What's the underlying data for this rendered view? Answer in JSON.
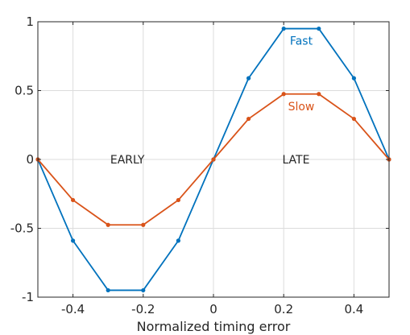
{
  "chart_data": {
    "type": "line",
    "title": "",
    "xlabel": "Normalized timing error",
    "ylabel": "",
    "xlim": [
      -0.5,
      0.5
    ],
    "ylim": [
      -1,
      1
    ],
    "grid": true,
    "x_ticks": [
      -0.4,
      -0.2,
      0,
      0.2,
      0.4
    ],
    "x_tick_labels": [
      "-0.4",
      "-0.2",
      "0",
      "0.2",
      "0.4"
    ],
    "y_ticks": [
      -1,
      -0.5,
      0,
      0.5,
      1
    ],
    "y_tick_labels": [
      "-1",
      "-0.5",
      "0",
      "0.5",
      "1"
    ],
    "x": [
      -0.5,
      -0.4,
      -0.3,
      -0.2,
      -0.1,
      0,
      0.1,
      0.2,
      0.3,
      0.4,
      0.5
    ],
    "series": [
      {
        "name": "Fast",
        "color": "#0072bd",
        "values": [
          0,
          -0.59,
          -0.95,
          -0.95,
          -0.59,
          0,
          0.59,
          0.95,
          0.95,
          0.59,
          0
        ]
      },
      {
        "name": "Slow",
        "color": "#d95319",
        "values": [
          0,
          -0.295,
          -0.475,
          -0.475,
          -0.295,
          0,
          0.295,
          0.475,
          0.475,
          0.295,
          0
        ]
      }
    ],
    "annotations": [
      {
        "text": "EARLY",
        "x": -0.245,
        "y": 0
      },
      {
        "text": "LATE",
        "x": 0.235,
        "y": 0
      }
    ]
  }
}
